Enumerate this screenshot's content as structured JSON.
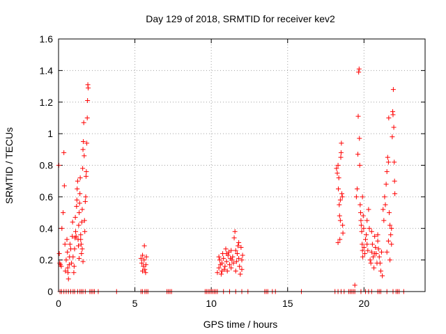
{
  "chart_data": {
    "type": "scatter",
    "title": "Day 129 of 2018, SRMTID for receiver kev2",
    "xlabel": "GPS time / hours",
    "ylabel": "SRMTID / TECUs",
    "xlim": [
      0,
      24
    ],
    "ylim": [
      0,
      1.6
    ],
    "grid": true,
    "xticks": [
      0,
      5,
      10,
      15,
      20
    ],
    "xtick_labels": [
      "0",
      "5",
      "10",
      "15",
      "20"
    ],
    "yticks": [
      0,
      0.2,
      0.4,
      0.6,
      0.8,
      1,
      1.2,
      1.4,
      1.6
    ],
    "ytick_labels": [
      "0",
      "0.2",
      "0.4",
      "0.6",
      "0.8",
      "1",
      "1.2",
      "1.4",
      "1.6"
    ],
    "marker": "+",
    "color": "#ff0000",
    "series": [
      {
        "name": "kev2",
        "points": [
          [
            0.02,
            0.8
          ],
          [
            0.05,
            0.24
          ],
          [
            0.08,
            0.18
          ],
          [
            0.12,
            0.17
          ],
          [
            0.18,
            0.16
          ],
          [
            0.22,
            0.4
          ],
          [
            0.3,
            0.5
          ],
          [
            0.35,
            0.88
          ],
          [
            0.38,
            0.67
          ],
          [
            0.42,
            0.3
          ],
          [
            0.45,
            0.13
          ],
          [
            0.5,
            0.2
          ],
          [
            0.55,
            0.33
          ],
          [
            0.58,
            0.25
          ],
          [
            0.6,
            0.15
          ],
          [
            0.62,
            0.12
          ],
          [
            0.65,
            0.08
          ],
          [
            0.7,
            0.17
          ],
          [
            0.72,
            0.22
          ],
          [
            0.75,
            0.3
          ],
          [
            0.8,
            0.27
          ],
          [
            0.85,
            0.18
          ],
          [
            0.9,
            0.35
          ],
          [
            0.92,
            0.44
          ],
          [
            0.95,
            0.22
          ],
          [
            1.0,
            0.12
          ],
          [
            1.02,
            0.16
          ],
          [
            1.05,
            0.27
          ],
          [
            1.08,
            0.34
          ],
          [
            1.1,
            0.47
          ],
          [
            1.12,
            0.38
          ],
          [
            1.15,
            0.35
          ],
          [
            1.18,
            0.54
          ],
          [
            1.2,
            0.58
          ],
          [
            1.22,
            0.65
          ],
          [
            1.25,
            0.7
          ],
          [
            1.28,
            0.33
          ],
          [
            1.3,
            0.29
          ],
          [
            1.32,
            0.42
          ],
          [
            1.35,
            0.5
          ],
          [
            1.38,
            0.56
          ],
          [
            1.4,
            0.62
          ],
          [
            1.42,
            0.72
          ],
          [
            1.45,
            0.36
          ],
          [
            1.48,
            0.3
          ],
          [
            1.5,
            0.24
          ],
          [
            1.52,
            0.44
          ],
          [
            1.55,
            0.52
          ],
          [
            1.58,
            0.78
          ],
          [
            1.6,
            0.9
          ],
          [
            1.62,
            0.95
          ],
          [
            1.65,
            1.07
          ],
          [
            1.68,
            0.86
          ],
          [
            1.7,
            0.45
          ],
          [
            1.72,
            0.38
          ],
          [
            1.75,
            0.57
          ],
          [
            1.78,
            0.6
          ],
          [
            1.8,
            0.73
          ],
          [
            1.82,
            0.76
          ],
          [
            1.85,
            0.94
          ],
          [
            1.88,
            1.1
          ],
          [
            1.9,
            1.21
          ],
          [
            1.92,
            1.31
          ],
          [
            1.94,
            1.29
          ],
          [
            1.6,
            0.19
          ],
          [
            1.55,
            0.27
          ],
          [
            1.45,
            0.33
          ],
          [
            1.35,
            0.21
          ],
          [
            5.4,
            0.21
          ],
          [
            5.45,
            0.18
          ],
          [
            5.5,
            0.23
          ],
          [
            5.55,
            0.16
          ],
          [
            5.6,
            0.2
          ],
          [
            5.62,
            0.29
          ],
          [
            5.65,
            0.14
          ],
          [
            5.7,
            0.12
          ],
          [
            5.72,
            0.17
          ],
          [
            5.75,
            0.22
          ],
          [
            5.5,
            0.13
          ],
          [
            10.4,
            0.12
          ],
          [
            10.5,
            0.15
          ],
          [
            10.55,
            0.2
          ],
          [
            10.6,
            0.17
          ],
          [
            10.65,
            0.11
          ],
          [
            10.7,
            0.18
          ],
          [
            10.75,
            0.24
          ],
          [
            10.8,
            0.21
          ],
          [
            10.85,
            0.14
          ],
          [
            10.9,
            0.16
          ],
          [
            10.95,
            0.27
          ],
          [
            11.0,
            0.19
          ],
          [
            11.05,
            0.13
          ],
          [
            11.1,
            0.23
          ],
          [
            11.15,
            0.25
          ],
          [
            11.2,
            0.17
          ],
          [
            11.25,
            0.21
          ],
          [
            11.3,
            0.15
          ],
          [
            11.35,
            0.2
          ],
          [
            11.4,
            0.22
          ],
          [
            11.45,
            0.18
          ],
          [
            11.5,
            0.34
          ],
          [
            11.55,
            0.38
          ],
          [
            11.6,
            0.26
          ],
          [
            11.65,
            0.19
          ],
          [
            11.7,
            0.24
          ],
          [
            11.75,
            0.29
          ],
          [
            11.8,
            0.21
          ],
          [
            11.85,
            0.16
          ],
          [
            11.9,
            0.11
          ],
          [
            11.95,
            0.28
          ],
          [
            12.0,
            0.2
          ],
          [
            12.05,
            0.23
          ],
          [
            10.7,
            0.13
          ],
          [
            11.0,
            0.24
          ],
          [
            11.3,
            0.26
          ],
          [
            11.6,
            0.13
          ],
          [
            11.8,
            0.31
          ],
          [
            12.0,
            0.14
          ],
          [
            10.5,
            0.22
          ],
          [
            18.2,
            0.78
          ],
          [
            18.25,
            0.75
          ],
          [
            18.3,
            0.8
          ],
          [
            18.32,
            0.65
          ],
          [
            18.35,
            0.72
          ],
          [
            18.38,
            0.55
          ],
          [
            18.4,
            0.48
          ],
          [
            18.42,
            0.33
          ],
          [
            18.45,
            0.45
          ],
          [
            18.48,
            0.85
          ],
          [
            18.5,
            0.88
          ],
          [
            18.52,
            0.94
          ],
          [
            18.55,
            0.62
          ],
          [
            18.58,
            0.6
          ],
          [
            18.6,
            0.42
          ],
          [
            18.62,
            0.37
          ],
          [
            18.3,
            0.31
          ],
          [
            18.45,
            0.58
          ],
          [
            19.4,
            0.04
          ],
          [
            19.5,
            0.6
          ],
          [
            19.55,
            0.65
          ],
          [
            19.6,
            0.87
          ],
          [
            19.62,
            1.11
          ],
          [
            19.65,
            1.39
          ],
          [
            19.68,
            1.41
          ],
          [
            19.7,
            0.97
          ],
          [
            19.72,
            0.8
          ],
          [
            19.75,
            0.55
          ],
          [
            19.78,
            0.5
          ],
          [
            19.8,
            0.45
          ],
          [
            19.82,
            0.42
          ],
          [
            19.85,
            0.38
          ],
          [
            19.88,
            0.3
          ],
          [
            19.9,
            0.26
          ],
          [
            19.92,
            0.22
          ],
          [
            19.95,
            0.48
          ],
          [
            19.98,
            0.4
          ],
          [
            20.0,
            0.28
          ],
          [
            20.05,
            0.24
          ],
          [
            20.1,
            0.33
          ],
          [
            20.15,
            0.36
          ],
          [
            20.2,
            0.3
          ],
          [
            20.25,
            0.26
          ],
          [
            20.3,
            0.52
          ],
          [
            20.35,
            0.4
          ],
          [
            20.4,
            0.2
          ],
          [
            20.45,
            0.18
          ],
          [
            20.5,
            0.25
          ],
          [
            20.55,
            0.3
          ],
          [
            20.6,
            0.22
          ],
          [
            20.65,
            0.15
          ],
          [
            20.7,
            0.35
          ],
          [
            20.75,
            0.28
          ],
          [
            20.8,
            0.24
          ],
          [
            20.85,
            0.18
          ],
          [
            20.9,
            0.32
          ],
          [
            20.95,
            0.27
          ],
          [
            21.0,
            0.22
          ],
          [
            21.05,
            0.18
          ],
          [
            21.1,
            0.13
          ],
          [
            21.15,
            0.25
          ],
          [
            21.2,
            0.1
          ],
          [
            21.25,
            0.52
          ],
          [
            21.3,
            0.45
          ],
          [
            21.35,
            0.6
          ],
          [
            21.4,
            0.55
          ],
          [
            21.45,
            0.68
          ],
          [
            21.5,
            0.76
          ],
          [
            21.55,
            0.85
          ],
          [
            21.6,
            0.82
          ],
          [
            21.62,
            1.1
          ],
          [
            21.65,
            0.5
          ],
          [
            21.7,
            0.42
          ],
          [
            21.75,
            0.36
          ],
          [
            21.8,
            0.3
          ],
          [
            21.85,
            0.98
          ],
          [
            21.88,
            1.14
          ],
          [
            21.9,
            1.12
          ],
          [
            21.92,
            1.28
          ],
          [
            21.95,
            1.04
          ],
          [
            21.98,
            0.82
          ],
          [
            22.0,
            0.7
          ],
          [
            22.02,
            0.62
          ],
          [
            21.5,
            0.25
          ],
          [
            21.6,
            0.32
          ],
          [
            21.7,
            0.2
          ],
          [
            21.8,
            0.4
          ],
          [
            20.9,
            0.36
          ],
          [
            20.7,
            0.24
          ],
          [
            20.5,
            0.38
          ],
          [
            20.2,
            0.45
          ],
          [
            19.9,
            0.6
          ],
          [
            0.1,
            0
          ],
          [
            0.2,
            0
          ],
          [
            0.35,
            0
          ],
          [
            0.5,
            0
          ],
          [
            0.65,
            0
          ],
          [
            0.8,
            0
          ],
          [
            0.95,
            0
          ],
          [
            1.05,
            0
          ],
          [
            1.25,
            0
          ],
          [
            1.4,
            0
          ],
          [
            1.5,
            0
          ],
          [
            1.6,
            0
          ],
          [
            1.75,
            0
          ],
          [
            2.05,
            0
          ],
          [
            2.15,
            0
          ],
          [
            2.25,
            0
          ],
          [
            2.35,
            0
          ],
          [
            2.6,
            0
          ],
          [
            3.8,
            0
          ],
          [
            5.4,
            0
          ],
          [
            5.5,
            0
          ],
          [
            5.65,
            0
          ],
          [
            5.75,
            0
          ],
          [
            5.85,
            0
          ],
          [
            7.1,
            0
          ],
          [
            7.2,
            0
          ],
          [
            7.3,
            0
          ],
          [
            7.4,
            0
          ],
          [
            9.6,
            0
          ],
          [
            9.7,
            0
          ],
          [
            9.8,
            0
          ],
          [
            9.9,
            0
          ],
          [
            10.0,
            0
          ],
          [
            10.1,
            0
          ],
          [
            10.2,
            0
          ],
          [
            10.3,
            0
          ],
          [
            10.4,
            0
          ],
          [
            10.8,
            0
          ],
          [
            11.2,
            0
          ],
          [
            11.6,
            0
          ],
          [
            12.0,
            0
          ],
          [
            12.4,
            0
          ],
          [
            13.5,
            0
          ],
          [
            13.6,
            0
          ],
          [
            13.7,
            0
          ],
          [
            14.0,
            0
          ],
          [
            14.2,
            0
          ],
          [
            15.9,
            0
          ],
          [
            18.1,
            0
          ],
          [
            18.3,
            0
          ],
          [
            18.5,
            0
          ],
          [
            18.7,
            0
          ],
          [
            19.0,
            0
          ],
          [
            19.1,
            0
          ],
          [
            19.2,
            0
          ],
          [
            19.3,
            0
          ],
          [
            19.4,
            0
          ],
          [
            19.8,
            0
          ],
          [
            20.1,
            0
          ],
          [
            20.3,
            0
          ],
          [
            20.5,
            0
          ],
          [
            20.9,
            0
          ],
          [
            21.0,
            0
          ],
          [
            21.1,
            0
          ],
          [
            21.5,
            0
          ],
          [
            21.9,
            0
          ],
          [
            22.1,
            0
          ],
          [
            22.2,
            0
          ],
          [
            22.3,
            0
          ],
          [
            22.6,
            0
          ]
        ]
      }
    ]
  }
}
